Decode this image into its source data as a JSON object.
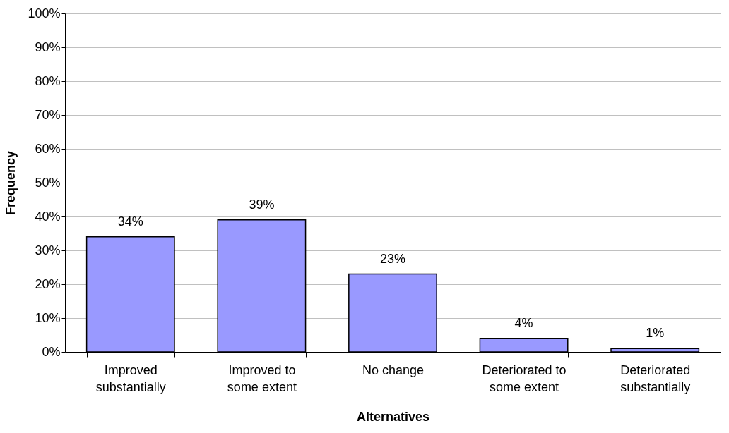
{
  "chart_data": {
    "type": "bar",
    "xlabel": "Alternatives",
    "ylabel": "Frequency",
    "categories": [
      "Improved substantially",
      "Improved to some extent",
      "No change",
      "Deteriorated to some extent",
      "Deteriorated substantially"
    ],
    "values": [
      34,
      39,
      23,
      4,
      1
    ],
    "value_labels": [
      "34%",
      "39%",
      "23%",
      "4%",
      "1%"
    ],
    "color": "#9999ff",
    "ylim": [
      0,
      100
    ],
    "yticks": [
      {
        "value": 0,
        "label": "0%"
      },
      {
        "value": 10,
        "label": "10%"
      },
      {
        "value": 20,
        "label": "20%"
      },
      {
        "value": 30,
        "label": "30%"
      },
      {
        "value": 40,
        "label": "40%"
      },
      {
        "value": 50,
        "label": "50%"
      },
      {
        "value": 60,
        "label": "60%"
      },
      {
        "value": 70,
        "label": "70%"
      },
      {
        "value": 80,
        "label": "80%"
      },
      {
        "value": 90,
        "label": "90%"
      },
      {
        "value": 100,
        "label": "100%"
      }
    ],
    "grid": "y"
  }
}
